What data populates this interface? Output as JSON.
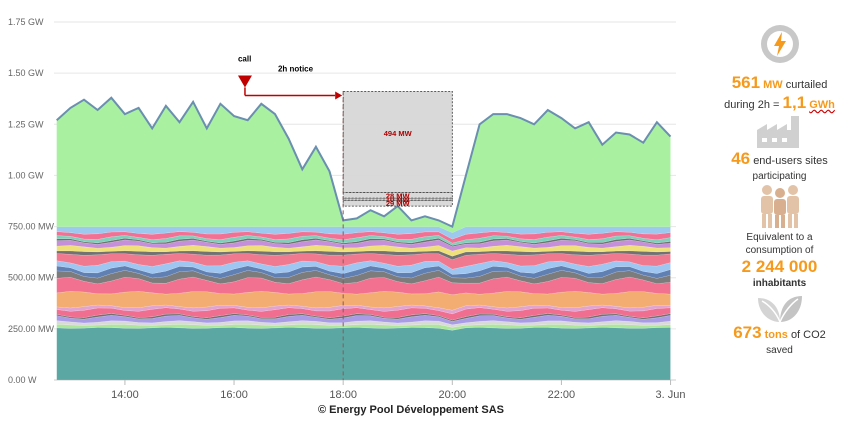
{
  "chart_data": {
    "type": "area",
    "stacked": true,
    "title": "",
    "xlabel": "",
    "ylabel": "",
    "x_tick_labels": [
      "14:00",
      "16:00",
      "18:00",
      "20:00",
      "22:00",
      "3. Jun"
    ],
    "x_tick_hours": [
      14,
      16,
      18,
      20,
      22,
      24
    ],
    "x_range_hours": [
      12.7,
      24.1
    ],
    "y_tick_labels": [
      "0.00 W",
      "250.00 MW",
      "500.00 MW",
      "750.00 MW",
      "1.00 GW",
      "1.25 GW",
      "1.50 GW",
      "1.75 GW"
    ],
    "y_tick_values": [
      0,
      250,
      500,
      750,
      1000,
      1250,
      1500,
      1750
    ],
    "ylim": [
      0,
      1750
    ],
    "grid": true,
    "legend": "none",
    "total_series": {
      "x_hours": [
        12.75,
        13.0,
        13.25,
        13.5,
        13.75,
        14.0,
        14.25,
        14.5,
        14.75,
        15.0,
        15.25,
        15.5,
        15.75,
        16.0,
        16.25,
        16.5,
        16.75,
        17.0,
        17.25,
        17.5,
        17.75,
        18.0,
        18.25,
        18.5,
        18.75,
        19.0,
        19.25,
        19.5,
        19.75,
        20.0,
        20.25,
        20.5,
        20.75,
        21.0,
        21.25,
        21.5,
        21.75,
        22.0,
        22.25,
        22.5,
        22.75,
        23.0,
        23.25,
        23.5,
        23.75,
        24.0
      ],
      "values_mw": [
        1270,
        1330,
        1370,
        1320,
        1380,
        1300,
        1330,
        1230,
        1340,
        1260,
        1360,
        1230,
        1350,
        1290,
        1270,
        1350,
        1300,
        1180,
        1030,
        1140,
        1020,
        780,
        790,
        830,
        800,
        850,
        780,
        800,
        780,
        750,
        1000,
        1250,
        1300,
        1300,
        1280,
        1250,
        1320,
        1280,
        1230,
        1260,
        1150,
        1210,
        1200,
        1160,
        1260,
        1190
      ]
    },
    "layer_fractions": [
      0.34,
      0.02,
      0.02,
      0.03,
      0.01,
      0.04,
      0.02,
      0.09,
      0.08,
      0.04,
      0.03,
      0.04,
      0.06,
      0.02,
      0.03,
      0.03,
      0.01,
      0.02,
      0.03,
      0.04
    ],
    "layer_colors": [
      "#5aa7a3",
      "#ace79a",
      "#d9d9d9",
      "#a99be5",
      "#6f6f6f",
      "#f06e8f",
      "#e1a3cf",
      "#f3ad72",
      "#f27190",
      "#7c7c7c",
      "#607fb3",
      "#9ec6f0",
      "#f07990",
      "#727272",
      "#efe07a",
      "#c58fd9",
      "#6f6f6f",
      "#7fd0ba",
      "#f27093",
      "#9cc9ed"
    ],
    "top_layer_color": "#a9f0a1",
    "annotations": {
      "call_label": "call",
      "notice_label": "2h notice",
      "call_time_hours": 16.2,
      "call_level_mw": 1430,
      "curtail_start_hours": 18.0,
      "curtail_end_hours": 20.0,
      "blocks": [
        {
          "label": "494 MW",
          "value": 494
        },
        {
          "label": "28 MW",
          "value": 28
        },
        {
          "label": "10 MW",
          "value": 10
        },
        {
          "label": "29 MW",
          "value": 29
        }
      ]
    }
  },
  "copyright": "© Energy Pool Développement SAS",
  "stats": {
    "curtailed_value": "561",
    "curtailed_unit": "MW",
    "curtailed_text": "curtailed",
    "during_text": "during 2h =",
    "energy_value": "1,1",
    "energy_unit": "GWh",
    "sites_value": "46",
    "sites_text": "end-users sites",
    "participating_text": "participating",
    "equivalent_line1": "Equivalent to a",
    "equivalent_line2": "consumption of",
    "inhabitants_value": "2 244 000",
    "inhabitants_text": "inhabitants",
    "co2_value": "673",
    "co2_unit": "tons",
    "co2_text": "of CO2",
    "saved_text": "saved"
  },
  "icon_names": [
    "lightning-icon",
    "factory-icon",
    "people-icon",
    "leaf-icon"
  ],
  "colors": {
    "accent": "#f59a1d",
    "arrow": "#c00000"
  }
}
